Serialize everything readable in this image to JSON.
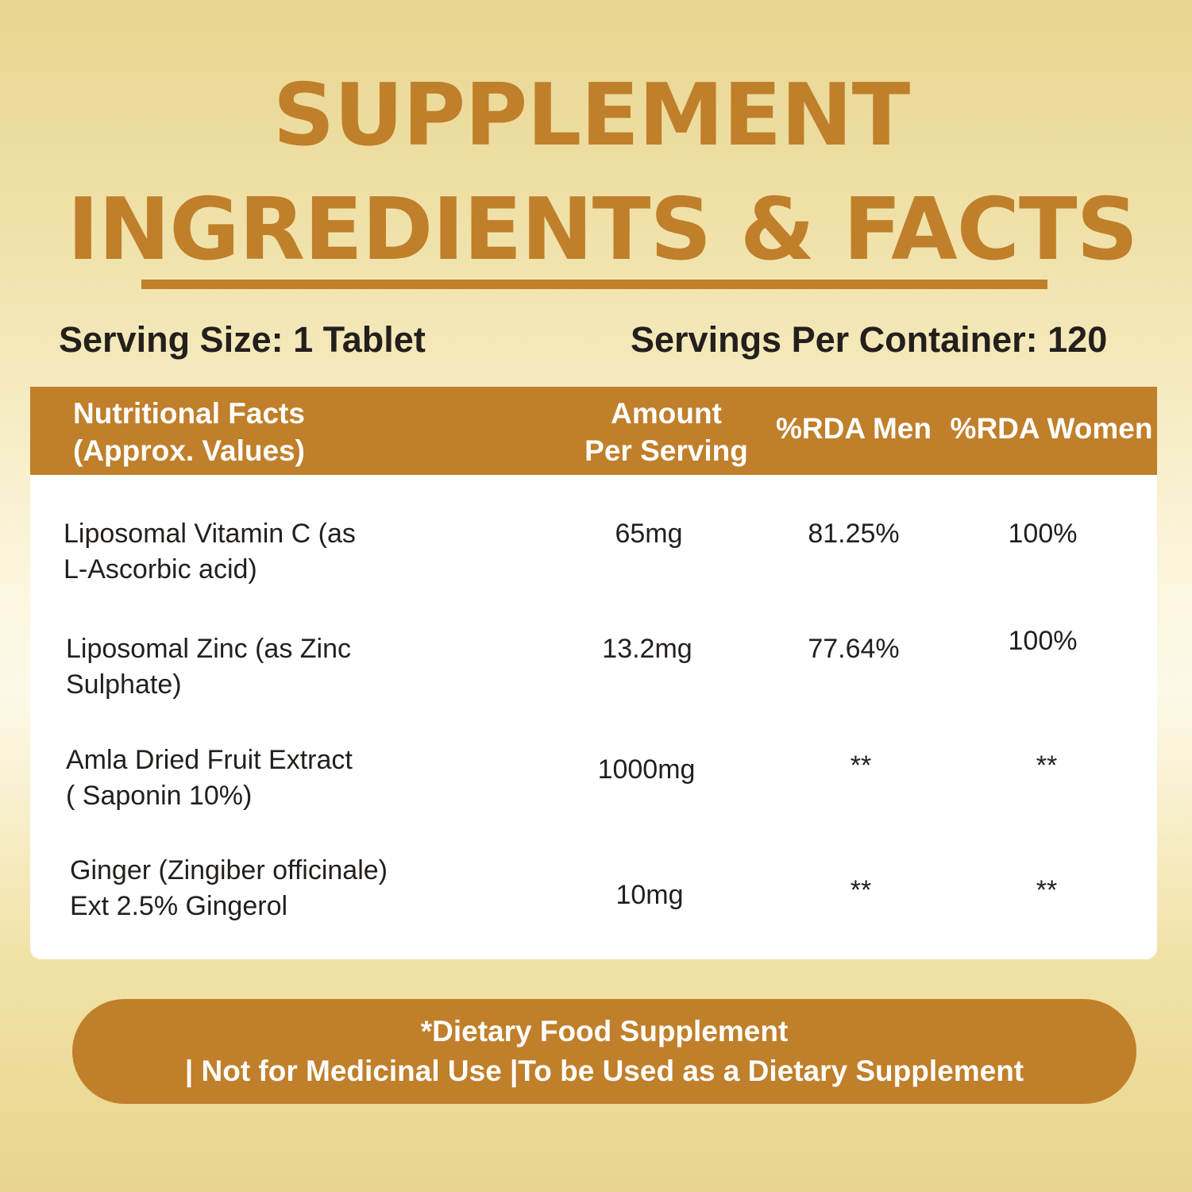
{
  "title": {
    "line1": "SUPPLEMENT",
    "line2": "INGREDIENTS & FACTS"
  },
  "serving": {
    "size": "Serving Size: 1 Tablet",
    "per_container": "Servings Per Container: 120"
  },
  "table": {
    "headers": {
      "nutrition_line1": "Nutritional Facts",
      "nutrition_line2": "(Approx. Values)",
      "amount_line1": "Amount",
      "amount_line2": "Per Serving",
      "rda_men": "%RDA Men",
      "rda_women": "%RDA Women"
    },
    "rows": [
      {
        "name_line1": "Liposomal Vitamin C (as",
        "name_line2": "L-Ascorbic acid)",
        "amount": "65mg",
        "rda_men": "81.25%",
        "rda_women": "100%"
      },
      {
        "name_line1": "Liposomal Zinc (as Zinc",
        "name_line2": "Sulphate)",
        "amount": "13.2mg",
        "rda_men": "77.64%",
        "rda_women": "100%"
      },
      {
        "name_line1": "Amla Dried Fruit Extract",
        "name_line2": "( Saponin 10%)",
        "amount": "1000mg",
        "rda_men": "**",
        "rda_women": "**"
      },
      {
        "name_line1": "Ginger (Zingiber officinale)",
        "name_line2": "Ext 2.5% Gingerol",
        "amount": "10mg",
        "rda_men": "**",
        "rda_women": "**"
      }
    ]
  },
  "footer": {
    "line1": "*Dietary Food Supplement",
    "line2": "| Not for Medicinal Use |To be Used as a Dietary Supplement"
  },
  "colors": {
    "accent": "#c07f2a",
    "text": "#231f1c",
    "panel": "#ffffff"
  }
}
